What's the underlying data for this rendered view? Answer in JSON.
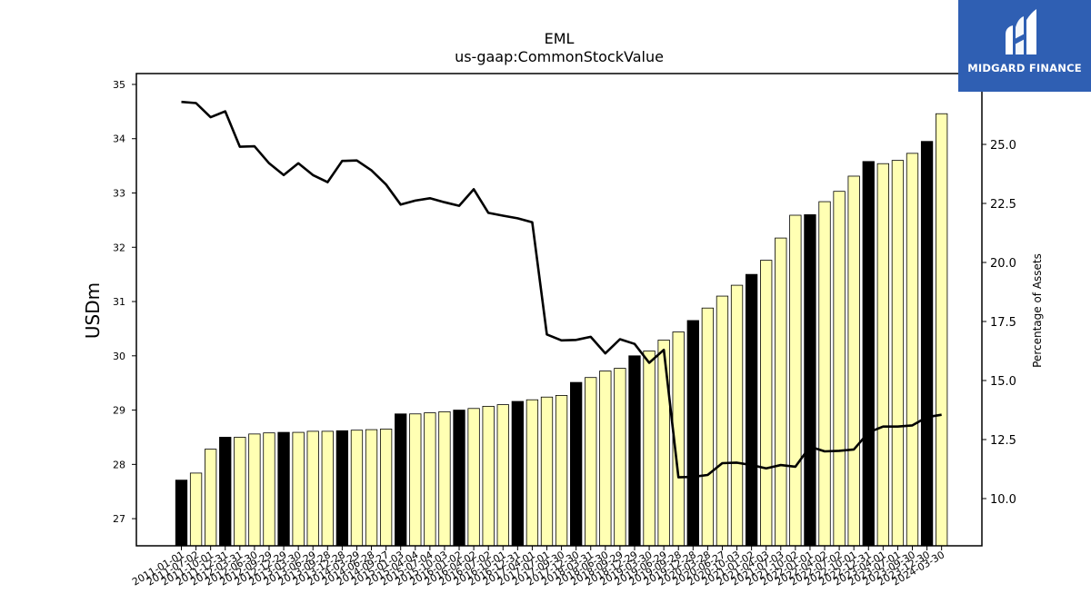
{
  "chart_data": {
    "type": "bar",
    "title": "EML",
    "subtitle": "us-gaap:CommonStockValue",
    "ylabel": "USDm",
    "y2label": "Percentage of Assets",
    "ylim": [
      26.5,
      35.2
    ],
    "y2lim": [
      8.0,
      28.0
    ],
    "yticks": [
      27,
      28,
      29,
      30,
      31,
      32,
      33,
      34,
      35
    ],
    "y2ticks": [
      "10.0",
      "12.5",
      "15.0",
      "17.5",
      "20.0",
      "22.5",
      "25.0"
    ],
    "grid": false,
    "legend": "none",
    "categories": [
      "2011-01-01",
      "2011-07-02",
      "2011-10-01",
      "2011-12-31",
      "2012-03-31",
      "2012-06-30",
      "2012-09-29",
      "2012-12-29",
      "2013-03-30",
      "2013-06-29",
      "2013-09-28",
      "2013-12-28",
      "2014-03-29",
      "2014-06-28",
      "2014-09-27",
      "2015-01-03",
      "2015-04-04",
      "2015-07-04",
      "2015-10-03",
      "2016-01-02",
      "2016-04-02",
      "2016-07-02",
      "2016-10-01",
      "2016-12-31",
      "2017-04-01",
      "2017-07-01",
      "2017-09-30",
      "2017-12-30",
      "2018-03-31",
      "2018-06-30",
      "2018-09-29",
      "2018-12-29",
      "2019-03-30",
      "2019-06-29",
      "2019-09-28",
      "2019-12-28",
      "2020-03-28",
      "2020-06-27",
      "2020-10-03",
      "2021-01-02",
      "2021-04-03",
      "2021-07-03",
      "2021-10-02",
      "2022-01-01",
      "2022-04-02",
      "2022-07-02",
      "2022-10-01",
      "2022-12-31",
      "2023-04-01",
      "2023-07-01",
      "2023-09-30",
      "2023-12-30",
      "2024-03-30"
    ],
    "tick_labels": [
      "2011-01-01",
      "2011-07-02",
      "2011-10-01",
      "2011-12-31",
      "2012-03-31",
      "2012-06-30",
      "2012-09-29",
      "2012-12-29",
      "2013-03-30",
      "2013-06-29",
      "2013-09-28",
      "2013-12-28",
      "2014-03-29",
      "2014-06-28",
      "2014-09-27",
      "2015-01-03",
      "2015-04-04",
      "2015-07-04",
      "2015-10-03",
      "2016-01-02",
      "2016-04-02",
      "2016-07-02",
      "2016-10-01",
      "2016-12-31",
      "2017-04-01",
      "2017-07-01",
      "2017-09-30",
      "2017-12-30",
      "2018-03-31",
      "2018-06-30",
      "2018-09-29",
      "2018-12-29",
      "2019-03-30",
      "2019-06-29",
      "2019-09-28",
      "2019-12-28",
      "2020-03-28",
      "2020-06-27",
      "2020-10-03",
      "2021-01-02",
      "2021-04-03",
      "2021-07-03",
      "2021-10-02",
      "2022-01-01",
      "2022-04-02",
      "2022-07-02",
      "2022-10-01",
      "2022-12-31",
      "2023-04-01",
      "2023-07-01",
      "2023-09-30",
      "2023-12-30",
      "2024-03-30"
    ],
    "series": [
      {
        "type": "bar",
        "axis": "left",
        "values": [
          27.71,
          27.84,
          28.28,
          28.5,
          28.5,
          28.56,
          28.58,
          28.59,
          28.59,
          28.61,
          28.61,
          28.62,
          28.63,
          28.64,
          28.65,
          28.93,
          28.93,
          28.95,
          28.97,
          29.0,
          29.03,
          29.07,
          29.1,
          29.16,
          29.19,
          29.24,
          29.27,
          29.51,
          29.6,
          29.72,
          29.77,
          30.0,
          30.09,
          30.29,
          30.44,
          30.65,
          30.88,
          31.1,
          31.3,
          31.5,
          31.76,
          32.17,
          32.59,
          32.6,
          32.84,
          33.03,
          33.31,
          33.58,
          33.54,
          33.6,
          33.73,
          33.95,
          34.46
        ],
        "highlight": [
          true,
          false,
          false,
          true,
          false,
          false,
          false,
          true,
          false,
          false,
          false,
          true,
          false,
          false,
          false,
          true,
          false,
          false,
          false,
          true,
          false,
          false,
          false,
          true,
          false,
          false,
          false,
          true,
          false,
          false,
          false,
          true,
          false,
          false,
          false,
          true,
          false,
          false,
          false,
          true,
          false,
          false,
          false,
          true,
          false,
          false,
          false,
          true,
          false,
          false,
          false,
          true,
          false
        ]
      },
      {
        "type": "line",
        "axis": "right",
        "values": [
          26.8,
          26.75,
          26.15,
          26.4,
          24.9,
          24.92,
          24.2,
          23.7,
          24.2,
          23.7,
          23.4,
          24.3,
          24.32,
          23.9,
          23.3,
          22.45,
          22.62,
          22.72,
          22.55,
          22.4,
          23.1,
          22.1,
          21.98,
          21.87,
          21.7,
          16.95,
          16.7,
          16.72,
          16.85,
          16.15,
          16.75,
          16.55,
          15.75,
          16.3,
          10.9,
          10.92,
          11.0,
          11.5,
          11.52,
          11.42,
          11.28,
          11.42,
          11.35,
          12.2,
          12.0,
          12.02,
          12.08,
          12.8,
          13.05,
          13.05,
          13.1,
          13.45,
          13.55
        ]
      }
    ],
    "colors": {
      "bar_fill": "#ffffb3",
      "bar_highlight": "#000000",
      "bar_edge": "#000000",
      "line": "#000000"
    }
  },
  "logo": {
    "text": "MIDGARD FINANCE",
    "icon": "midgard-logo-icon"
  }
}
